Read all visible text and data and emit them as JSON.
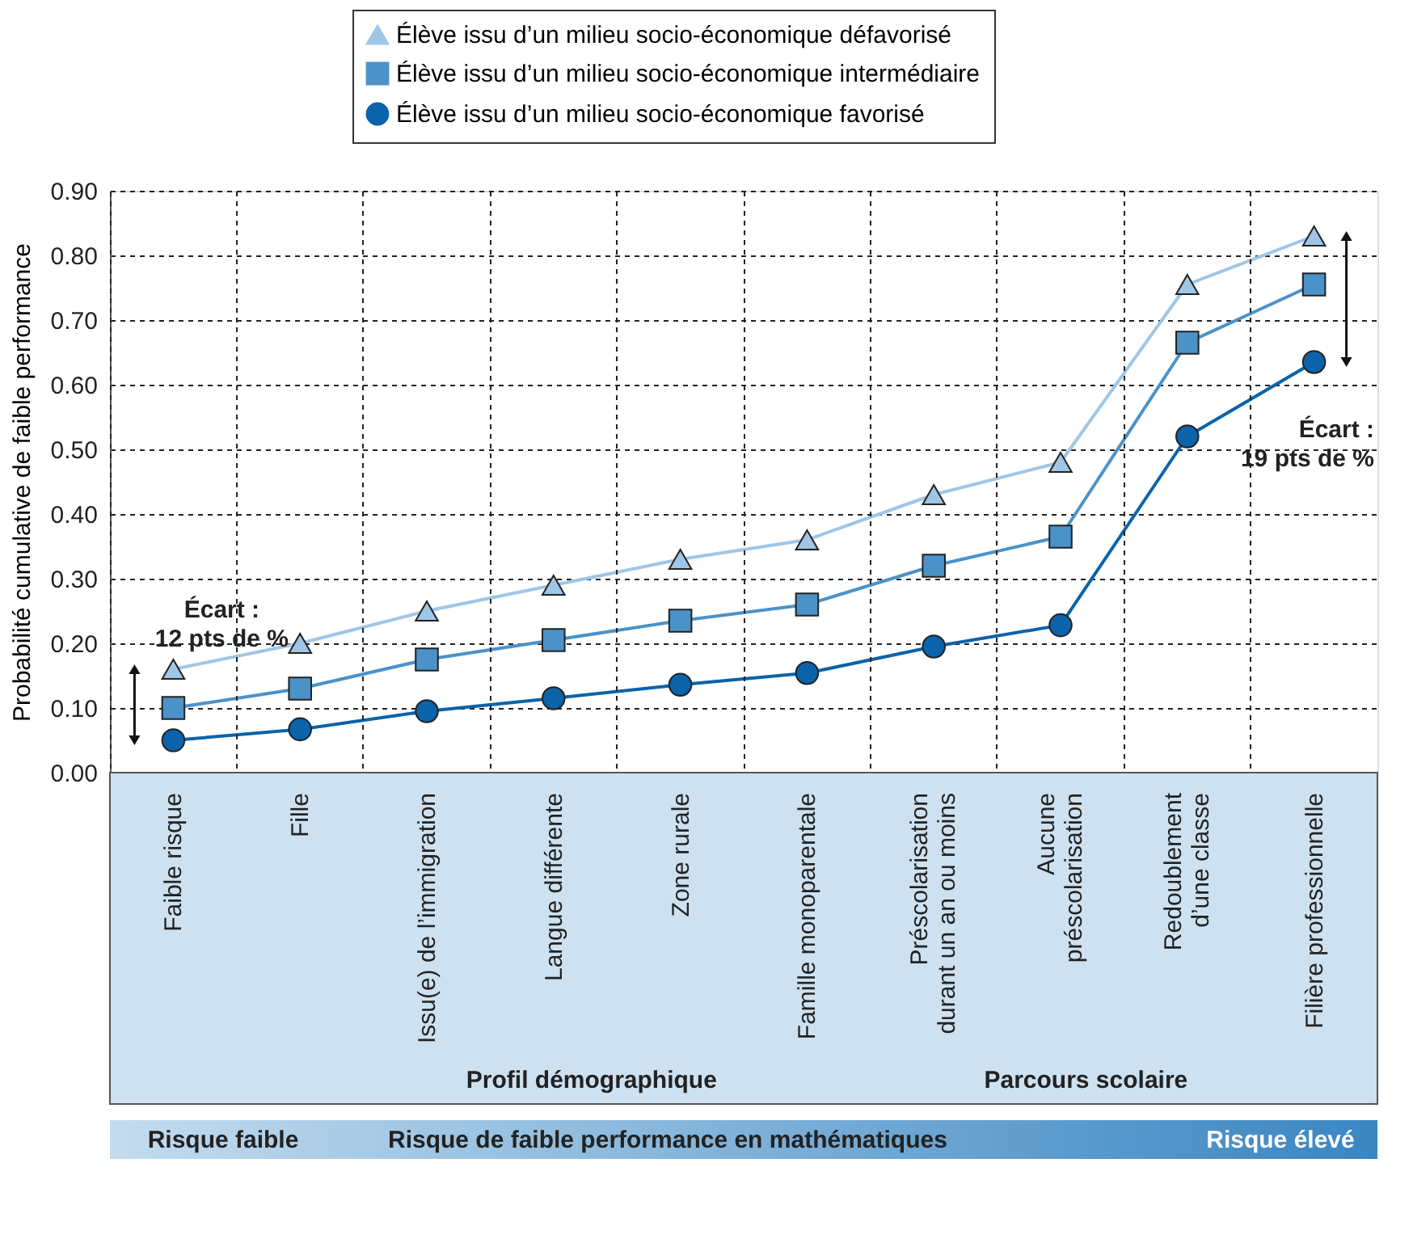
{
  "chart_data": {
    "type": "line",
    "ylabel": "Probabilité cumulative de faible performance",
    "categories": [
      "Faible risque",
      "Fille",
      "Issu(e) de l’immigration",
      "Langue différente",
      "Zone rurale",
      "Famille monoparentale",
      "Préscolarisation\ndurant un an ou moins",
      "Aucune\npréscolarisation",
      "Redoublement\nd’une classe",
      "Filière professionnelle"
    ],
    "series": [
      {
        "name": "Élève issu d’un milieu socio-économique défavorisé",
        "color": "#9fc6e6",
        "marker": "triangle",
        "values": [
          0.16,
          0.2,
          0.25,
          0.29,
          0.33,
          0.36,
          0.43,
          0.48,
          0.755,
          0.83
        ]
      },
      {
        "name": "Élève issu d’un milieu socio-économique intermédiaire",
        "color": "#4b92c9",
        "marker": "square",
        "values": [
          0.1,
          0.13,
          0.175,
          0.205,
          0.235,
          0.26,
          0.32,
          0.365,
          0.665,
          0.755
        ]
      },
      {
        "name": "Élève issu d’un milieu socio-économique favorisé",
        "color": "#0b63a9",
        "marker": "circle",
        "values": [
          0.05,
          0.067,
          0.095,
          0.115,
          0.136,
          0.154,
          0.195,
          0.228,
          0.52,
          0.635
        ]
      }
    ],
    "ylim": [
      0,
      0.9
    ],
    "yticks": [
      {
        "value": 0,
        "label": "0.00"
      },
      {
        "value": 0.1,
        "label": "0.10"
      },
      {
        "value": 0.2,
        "label": "0.20"
      },
      {
        "value": 0.3,
        "label": "0.30"
      },
      {
        "value": 0.4,
        "label": "0.40"
      },
      {
        "value": 0.5,
        "label": "0.50"
      },
      {
        "value": 0.6,
        "label": "0.60"
      },
      {
        "value": 0.7,
        "label": "0.70"
      },
      {
        "value": 0.8,
        "label": "0.80"
      },
      {
        "value": 0.9,
        "label": "0.90"
      }
    ],
    "grid": true,
    "legend": "top",
    "line_style": "solid",
    "annotations": [
      "Écart :\n12 pts de %",
      "Écart :\n19 pts de %",
      "Profil démographique",
      "Parcours scolaire",
      "Risque faible",
      "Risque de faible performance en mathématiques",
      "Risque élevé"
    ]
  }
}
